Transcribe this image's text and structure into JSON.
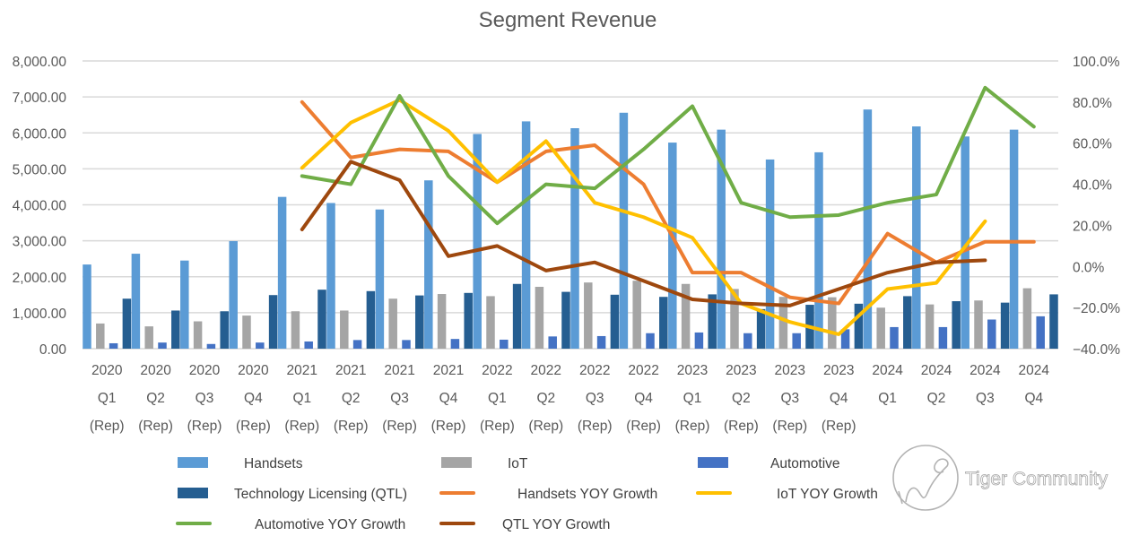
{
  "chart_data": {
    "type": "bar",
    "title": "Segment Revenue",
    "categories": [
      [
        "2020",
        "Q1",
        "(Rep)"
      ],
      [
        "2020",
        "Q2",
        "(Rep)"
      ],
      [
        "2020",
        "Q3",
        "(Rep)"
      ],
      [
        "2020",
        "Q4",
        "(Rep)"
      ],
      [
        "2021",
        "Q1",
        "(Rep)"
      ],
      [
        "2021",
        "Q2",
        "(Rep)"
      ],
      [
        "2021",
        "Q3",
        "(Rep)"
      ],
      [
        "2021",
        "Q4",
        "(Rep)"
      ],
      [
        "2022",
        "Q1",
        "(Rep)"
      ],
      [
        "2022",
        "Q2",
        "(Rep)"
      ],
      [
        "2022",
        "Q3",
        "(Rep)"
      ],
      [
        "2022",
        "Q4",
        "(Rep)"
      ],
      [
        "2023",
        "Q1",
        "(Rep)"
      ],
      [
        "2023",
        "Q2",
        "(Rep)"
      ],
      [
        "2023",
        "Q3",
        "(Rep)"
      ],
      [
        "2023",
        "Q4",
        "(Rep)"
      ],
      [
        "2024",
        "Q1",
        ""
      ],
      [
        "2024",
        "Q2",
        ""
      ],
      [
        "2024",
        "Q3",
        ""
      ],
      [
        "2024",
        "Q4",
        ""
      ]
    ],
    "y_left": {
      "range": [
        0,
        8000
      ],
      "ticks": [
        "0.00",
        "1,000.00",
        "2,000.00",
        "3,000.00",
        "4,000.00",
        "5,000.00",
        "6,000.00",
        "7,000.00",
        "8,000.00"
      ]
    },
    "y_right": {
      "range": [
        -40,
        100
      ],
      "ticks": [
        "-40.0%",
        "-20.0%",
        "0.0%",
        "20.0%",
        "40.0%",
        "60.0%",
        "80.0%",
        "100.0%"
      ]
    },
    "grid": true,
    "legend_position": "bottom",
    "bar_series": [
      {
        "name": "Handsets",
        "color": "#5b9bd5",
        "values": [
          2340,
          2640,
          2450,
          2990,
          4220,
          4050,
          3870,
          4680,
          5970,
          6320,
          6130,
          6560,
          5730,
          6090,
          5260,
          5460,
          6650,
          6180,
          5900,
          6090
        ]
      },
      {
        "name": "IoT",
        "color": "#a5a5a5",
        "values": [
          700,
          620,
          760,
          920,
          1040,
          1060,
          1390,
          1520,
          1460,
          1720,
          1840,
          1890,
          1800,
          1660,
          1440,
          1430,
          1140,
          1230,
          1340,
          1680
        ]
      },
      {
        "name": "Automotive",
        "color": "#4472c4",
        "values": [
          150,
          170,
          130,
          170,
          200,
          240,
          240,
          270,
          250,
          340,
          350,
          430,
          450,
          430,
          430,
          540,
          600,
          600,
          810,
          900
        ]
      },
      {
        "name": "Technology Licensing (QTL)",
        "color": "#255e91",
        "values": [
          1390,
          1060,
          1040,
          1490,
          1640,
          1600,
          1480,
          1550,
          1800,
          1580,
          1500,
          1440,
          1510,
          1100,
          1220,
          1250,
          1460,
          1320,
          1280,
          1510
        ]
      }
    ],
    "line_series": [
      {
        "name": "Handsets YOY Growth",
        "color": "#ed7d31",
        "values": [
          null,
          null,
          null,
          null,
          80,
          53,
          57,
          56,
          41,
          56,
          59,
          40,
          -3,
          -3,
          -15,
          -18,
          16,
          2,
          12,
          12
        ]
      },
      {
        "name": "IoT YOY Growth",
        "color": "#ffc000",
        "values": [
          null,
          null,
          null,
          null,
          48,
          70,
          81,
          66,
          41,
          61,
          31,
          24,
          14,
          -18,
          -27,
          -33,
          -11,
          -8,
          22,
          null
        ]
      },
      {
        "name": "Automotive  YOY Growth",
        "color": "#70ad47",
        "values": [
          null,
          null,
          null,
          null,
          44,
          40,
          83,
          44,
          21,
          40,
          38,
          57,
          78,
          31,
          24,
          25,
          31,
          35,
          87,
          68
        ]
      },
      {
        "name": "QTL  YOY Growth",
        "color": "#9e480e",
        "values": [
          null,
          null,
          null,
          null,
          18,
          51,
          42,
          5,
          10,
          -2,
          2,
          -7,
          -16,
          -18,
          -19,
          -11,
          -3,
          2,
          3,
          null
        ]
      }
    ],
    "legend": [
      {
        "label": "Handsets",
        "kind": "bar",
        "color": "#5b9bd5"
      },
      {
        "label": "IoT",
        "kind": "bar",
        "color": "#a5a5a5"
      },
      {
        "label": "Automotive",
        "kind": "bar",
        "color": "#4472c4"
      },
      {
        "label": "Technology Licensing (QTL)",
        "kind": "bar",
        "color": "#255e91"
      },
      {
        "label": "Handsets YOY Growth",
        "kind": "line",
        "color": "#ed7d31"
      },
      {
        "label": "IoT YOY Growth",
        "kind": "line",
        "color": "#ffc000"
      },
      {
        "label": "Automotive   YOY Growth",
        "kind": "line",
        "color": "#70ad47"
      },
      {
        "label": "QTL  YOY Growth",
        "kind": "line",
        "color": "#9e480e"
      }
    ]
  },
  "watermark": {
    "text": "Tiger Community",
    "icon": "tiger-community-logo-icon"
  }
}
